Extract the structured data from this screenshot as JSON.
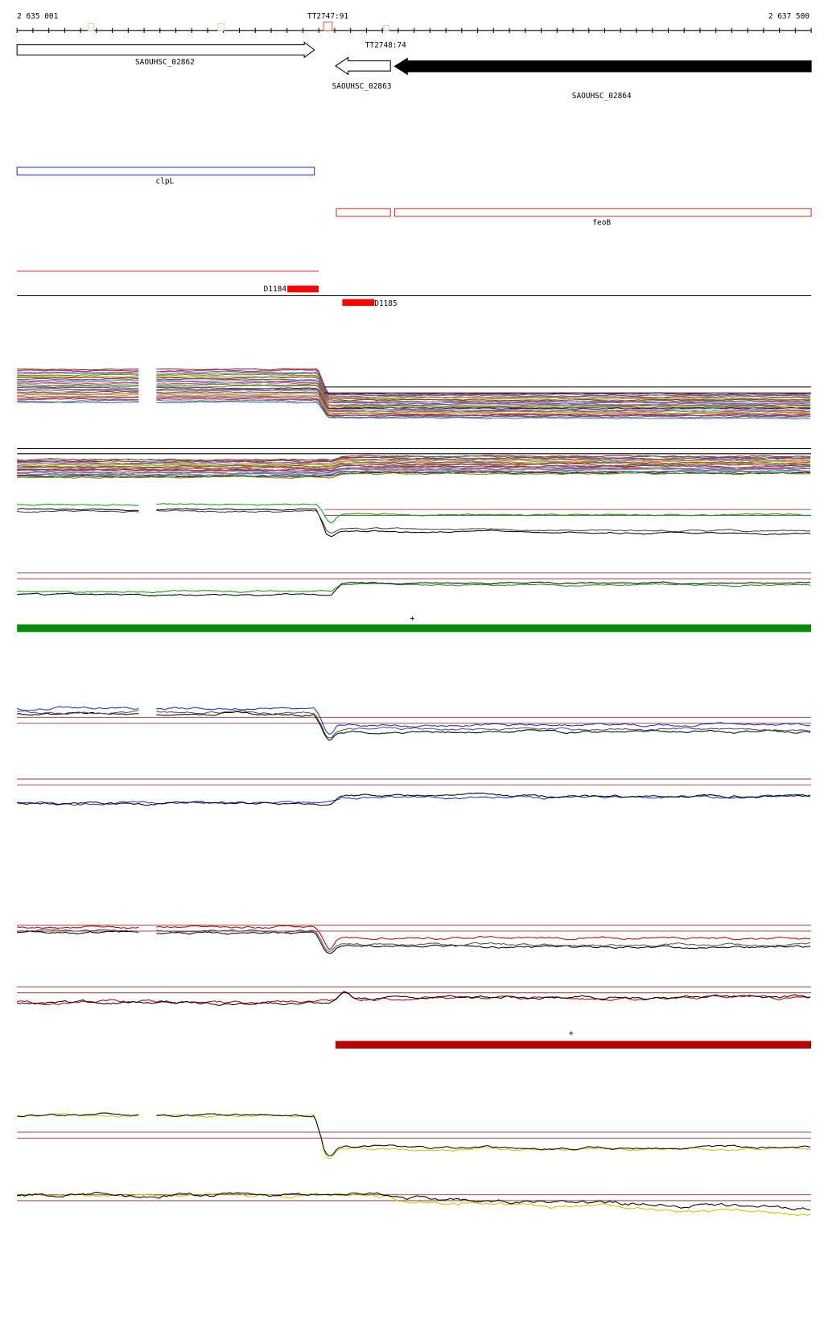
{
  "ruler": {
    "start": "2 635 001",
    "end": "2 637 500"
  },
  "terminators": [
    {
      "label": "TT2747:91"
    },
    {
      "label": "TT2748:74"
    }
  ],
  "genes": [
    {
      "label": "SAOUHSC_02862"
    },
    {
      "label": "SAOUHSC_02863"
    },
    {
      "label": "SAOUHSC_02864"
    }
  ],
  "annotations": [
    {
      "label": "clpL"
    },
    {
      "label": "feoB"
    }
  ],
  "probes": [
    {
      "label": "D1184"
    },
    {
      "label": "D1185"
    }
  ],
  "strand_marks": [
    "+",
    "+"
  ]
}
